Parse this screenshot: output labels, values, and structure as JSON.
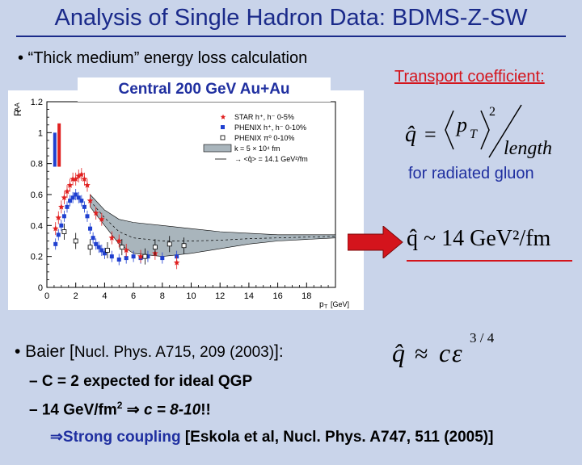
{
  "slide": {
    "title": "Analysis of Single Hadron Data: BDMS-Z-SW",
    "bullet1": "• “Thick medium” energy loss calculation",
    "plot_title": "Central 200 GeV Au+Au",
    "transport_label": "Transport coefficient:",
    "radiated_label": "for radiated gluon",
    "qhat_value": "q̂ ~ 14 GeV²/fm",
    "baier_bullet": "• Baier [",
    "baier_ref": "Nucl. Phys. A715, 209 (2003)",
    "baier_end": "]:",
    "sub1": "– C = 2 expected for ideal QGP",
    "sub2_a": "– 14 GeV/fm",
    "sub2_sup": "2",
    "sub2_b": " ⇒ ",
    "sub2_c": "c = 8-10",
    "sub2_d": "!!",
    "sub3_a": "⇒Strong coupling ",
    "sub3_b": "[Eskola et al, Nucl. Phys. A747, 511 (2005)]"
  },
  "formulas": {
    "qhat_symbol": "q̂",
    "equals": "=",
    "pt_sq_num": "p",
    "pt_sub": "T",
    "pt_sup": "2",
    "length": "length",
    "approx_formula_lhs": "q̂",
    "approx": "≈",
    "c": "c",
    "epsilon": "ε",
    "exponent": "3 / 4"
  },
  "chart_data": {
    "type": "scatter",
    "title": "",
    "xlabel": "p",
    "xlabel_sub": "T",
    "xlabel_unit": "[GeV]",
    "ylabel": "R",
    "ylabel_sub": "AA",
    "xlim": [
      0,
      20
    ],
    "ylim": [
      0,
      1.2
    ],
    "x_ticks": [
      "0",
      "2",
      "4",
      "6",
      "8",
      "10",
      "12",
      "14",
      "16",
      "18"
    ],
    "y_ticks": [
      "0",
      "0.2",
      "0.4",
      "0.6",
      "0.8",
      "1",
      "1.2"
    ],
    "legend": [
      {
        "label": "STAR h⁺, h⁻ 0-5%",
        "marker": "star",
        "color": "#e02020"
      },
      {
        "label": "PHENIX h⁺, h⁻ 0-10%",
        "marker": "square",
        "color": "#2040d0"
      },
      {
        "label": "PHENIX π⁰ 0-10%",
        "marker": "open-square",
        "color": "#000000"
      },
      {
        "label": "k = 5 × 10⁴ fm",
        "marker": "band",
        "color": "#a9b5bc"
      },
      {
        "label": "→ <q̂> = 14.1 GeV²/fm",
        "marker": "arrow",
        "color": "#000000"
      }
    ],
    "series": [
      {
        "name": "STAR h⁺, h⁻ 0-5%",
        "x": [
          0.6,
          0.8,
          1.0,
          1.2,
          1.4,
          1.6,
          1.8,
          2.0,
          2.2,
          2.4,
          2.6,
          2.8,
          3.0,
          3.4,
          3.8,
          4.5,
          5.0,
          5.5,
          6.5,
          7.5,
          9.0
        ],
        "y": [
          0.38,
          0.45,
          0.52,
          0.58,
          0.62,
          0.66,
          0.7,
          0.7,
          0.72,
          0.73,
          0.7,
          0.66,
          0.56,
          0.48,
          0.44,
          0.32,
          0.3,
          0.24,
          0.2,
          0.22,
          0.16
        ]
      },
      {
        "name": "PHENIX h⁺, h⁻ 0-10%",
        "x": [
          0.6,
          0.8,
          1.0,
          1.2,
          1.4,
          1.6,
          1.8,
          2.0,
          2.2,
          2.4,
          2.6,
          2.8,
          3.0,
          3.2,
          3.4,
          3.6,
          3.8,
          4.0,
          4.5,
          5.0,
          5.5,
          6.0,
          6.5,
          7.0,
          8.0,
          9.0
        ],
        "y": [
          0.28,
          0.34,
          0.4,
          0.46,
          0.52,
          0.56,
          0.58,
          0.6,
          0.58,
          0.56,
          0.52,
          0.46,
          0.38,
          0.32,
          0.28,
          0.26,
          0.24,
          0.22,
          0.2,
          0.18,
          0.19,
          0.2,
          0.19,
          0.2,
          0.19,
          0.2
        ]
      },
      {
        "name": "PHENIX π⁰ 0-10%",
        "x": [
          1.2,
          2.0,
          3.0,
          4.2,
          5.2,
          6.8,
          7.5,
          8.5,
          9.5
        ],
        "y": [
          0.36,
          0.3,
          0.26,
          0.24,
          0.26,
          0.2,
          0.26,
          0.28,
          0.27
        ]
      }
    ],
    "band": {
      "name": "k = 5 × 10⁴ fm",
      "x": [
        3.0,
        4.0,
        5.0,
        6.0,
        8.0,
        10.0,
        12.0,
        14.0,
        16.0,
        18.0,
        20.0
      ],
      "upper": [
        0.6,
        0.5,
        0.44,
        0.42,
        0.4,
        0.38,
        0.36,
        0.35,
        0.34,
        0.34,
        0.34
      ],
      "lower": [
        0.52,
        0.4,
        0.28,
        0.22,
        0.2,
        0.22,
        0.25,
        0.28,
        0.3,
        0.31,
        0.32
      ]
    },
    "systematic_bars": [
      {
        "x": 0.55,
        "low": 0.78,
        "high": 1.0,
        "color": "#2040d0"
      },
      {
        "x": 0.85,
        "low": 0.78,
        "high": 1.06,
        "color": "#e02020"
      }
    ],
    "grid": false,
    "legend_position": "top-right"
  }
}
